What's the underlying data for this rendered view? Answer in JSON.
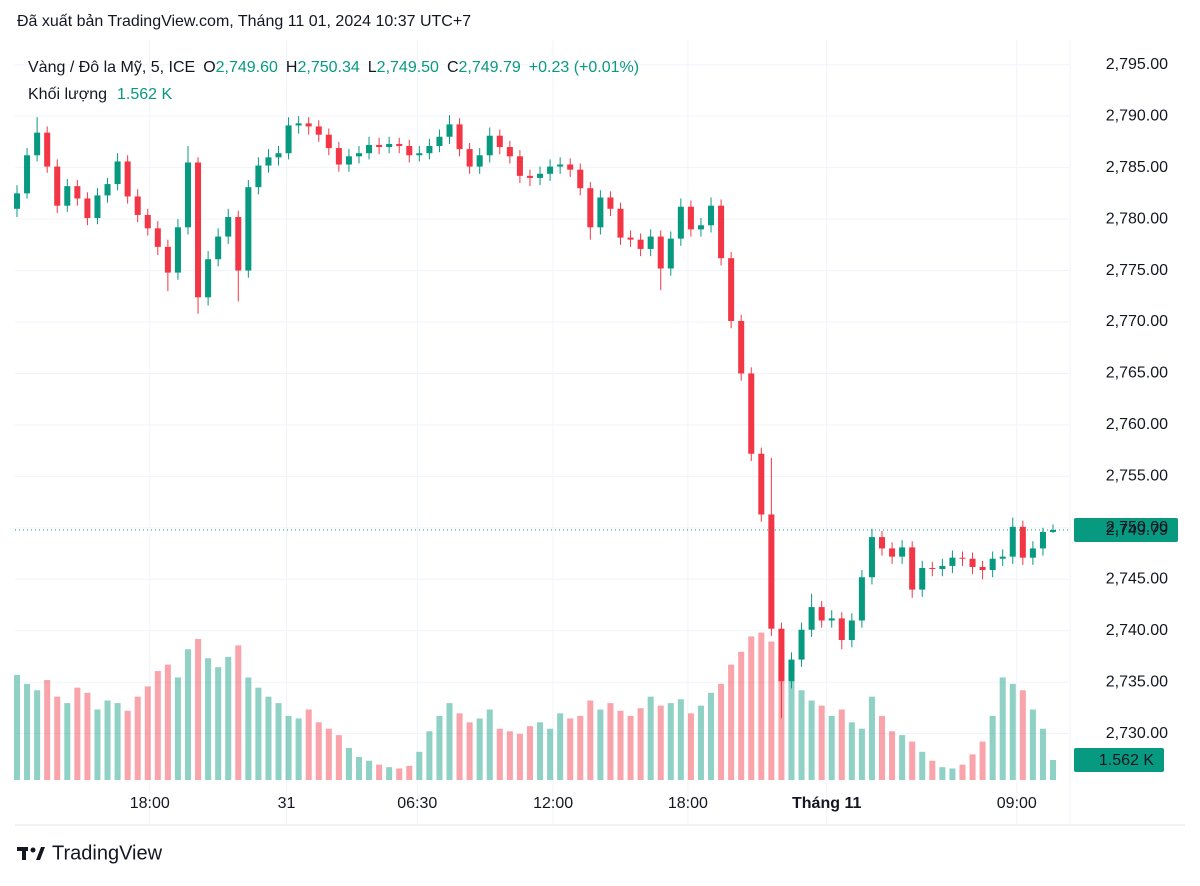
{
  "header": "Đã xuất bản TradingView.com, Tháng 11 01, 2024 10:37 UTC+7",
  "footer": "TradingView",
  "chart_data": {
    "type": "candlestick",
    "legend": {
      "symbol": "Vàng / Đô la Mỹ, 5, ICE",
      "o": "O",
      "open": {
        "value": 2749.6,
        "label": "2,749.60"
      },
      "h": "H",
      "high": {
        "value": 2750.34,
        "label": "2,750.34"
      },
      "l": "L",
      "low": {
        "value": 2749.5,
        "label": "2,749.50"
      },
      "c": "C",
      "close": {
        "value": 2749.79,
        "label": "2,749.79"
      },
      "change": "+0.23 (+0.01%)",
      "volume_name": "Khối lượng",
      "volume": {
        "value": 1.562,
        "label": "1.562 K"
      }
    },
    "up_color": "#089981",
    "down_color": "#f23645",
    "ylim": [
      2725.5,
      2797.4
    ],
    "yticks": [
      {
        "value": 2730,
        "label": "2,730.00"
      },
      {
        "value": 2735,
        "label": "2,735.00"
      },
      {
        "value": 2740,
        "label": "2,740.00"
      },
      {
        "value": 2745,
        "label": "2,745.00"
      },
      {
        "value": 2750,
        "label": "2,750.00"
      },
      {
        "value": 2755,
        "label": "2,755.00"
      },
      {
        "value": 2760,
        "label": "2,760.00"
      },
      {
        "value": 2765,
        "label": "2,765.00"
      },
      {
        "value": 2770,
        "label": "2,770.00"
      },
      {
        "value": 2775,
        "label": "2,775.00"
      },
      {
        "value": 2780,
        "label": "2,780.00"
      },
      {
        "value": 2785,
        "label": "2,785.00"
      },
      {
        "value": 2790,
        "label": "2,790.00"
      },
      {
        "value": 2795,
        "label": "2,795.00"
      }
    ],
    "xlim": [
      0,
      103
    ],
    "xticks": [
      {
        "value": 13.2,
        "label": "18:00"
      },
      {
        "value": 26.8,
        "label": "31"
      },
      {
        "value": 39.8,
        "label": "06:30"
      },
      {
        "value": 53.3,
        "label": "12:00"
      },
      {
        "value": 66.7,
        "label": "18:00"
      },
      {
        "value": 80.5,
        "label": "Tháng 11"
      },
      {
        "value": 99.4,
        "label": "09:00"
      }
    ],
    "y2lim": [
      0,
      11.7
    ],
    "last_price": {
      "value": 2749.79,
      "label": "2,749.79"
    },
    "last_volume": {
      "value": 1.562,
      "label": "1.562 K"
    },
    "ohlc": [
      [
        2781.0,
        2783.3,
        2780.2,
        2782.5
      ],
      [
        2782.5,
        2786.9,
        2782.0,
        2786.2
      ],
      [
        2786.2,
        2789.9,
        2785.6,
        2788.4
      ],
      [
        2788.4,
        2789.0,
        2784.5,
        2785.1
      ],
      [
        2785.1,
        2785.8,
        2780.6,
        2781.3
      ],
      [
        2781.3,
        2783.9,
        2780.7,
        2783.2
      ],
      [
        2783.2,
        2783.8,
        2781.3,
        2782.0
      ],
      [
        2782.0,
        2782.6,
        2779.4,
        2780.1
      ],
      [
        2780.1,
        2783.0,
        2779.5,
        2782.3
      ],
      [
        2782.3,
        2784.0,
        2781.6,
        2783.4
      ],
      [
        2783.4,
        2786.4,
        2782.8,
        2785.6
      ],
      [
        2785.6,
        2786.2,
        2781.5,
        2782.2
      ],
      [
        2782.2,
        2782.9,
        2779.7,
        2780.4
      ],
      [
        2780.4,
        2781.0,
        2778.4,
        2779.1
      ],
      [
        2779.1,
        2779.8,
        2776.5,
        2777.3
      ],
      [
        2777.3,
        2778.0,
        2773.0,
        2774.8
      ],
      [
        2774.8,
        2780.0,
        2774.1,
        2779.2
      ],
      [
        2779.2,
        2787.1,
        2778.5,
        2785.5
      ],
      [
        2785.5,
        2786.0,
        2770.8,
        2772.4
      ],
      [
        2772.4,
        2776.9,
        2771.6,
        2776.1
      ],
      [
        2776.1,
        2779.1,
        2775.4,
        2778.3
      ],
      [
        2778.3,
        2781.0,
        2777.6,
        2780.2
      ],
      [
        2780.2,
        2780.8,
        2772.0,
        2775.0
      ],
      [
        2775.0,
        2783.8,
        2774.3,
        2783.1
      ],
      [
        2783.1,
        2786.0,
        2782.4,
        2785.2
      ],
      [
        2785.2,
        2786.8,
        2784.5,
        2786.0
      ],
      [
        2786.0,
        2787.1,
        2785.2,
        2786.4
      ],
      [
        2786.4,
        2789.9,
        2785.8,
        2789.1
      ],
      [
        2789.1,
        2790.0,
        2788.3,
        2789.3
      ],
      [
        2789.3,
        2789.9,
        2788.2,
        2789.0
      ],
      [
        2789.0,
        2789.6,
        2787.5,
        2788.2
      ],
      [
        2788.2,
        2788.8,
        2786.2,
        2786.9
      ],
      [
        2786.9,
        2787.5,
        2784.6,
        2785.3
      ],
      [
        2785.3,
        2786.8,
        2784.6,
        2786.1
      ],
      [
        2786.1,
        2787.1,
        2785.4,
        2786.4
      ],
      [
        2786.4,
        2788.0,
        2785.8,
        2787.2
      ],
      [
        2787.2,
        2787.9,
        2786.3,
        2787.0
      ],
      [
        2787.0,
        2788.0,
        2786.4,
        2787.3
      ],
      [
        2787.3,
        2787.9,
        2786.4,
        2787.1
      ],
      [
        2787.1,
        2787.7,
        2785.5,
        2786.2
      ],
      [
        2786.2,
        2787.1,
        2785.6,
        2786.4
      ],
      [
        2786.4,
        2787.8,
        2785.8,
        2787.1
      ],
      [
        2787.1,
        2788.7,
        2786.5,
        2788.0
      ],
      [
        2788.0,
        2790.1,
        2787.3,
        2789.2
      ],
      [
        2789.2,
        2789.8,
        2786.1,
        2786.8
      ],
      [
        2786.8,
        2787.4,
        2784.4,
        2785.1
      ],
      [
        2785.1,
        2786.9,
        2784.4,
        2786.2
      ],
      [
        2786.2,
        2788.9,
        2785.5,
        2788.1
      ],
      [
        2788.1,
        2788.7,
        2786.3,
        2787.0
      ],
      [
        2787.0,
        2787.6,
        2785.4,
        2786.1
      ],
      [
        2786.1,
        2786.7,
        2783.5,
        2784.2
      ],
      [
        2784.2,
        2784.8,
        2783.2,
        2784.0
      ],
      [
        2784.0,
        2785.1,
        2783.3,
        2784.4
      ],
      [
        2784.4,
        2785.8,
        2783.7,
        2785.1
      ],
      [
        2785.1,
        2786.0,
        2784.4,
        2785.3
      ],
      [
        2785.3,
        2785.9,
        2784.1,
        2784.8
      ],
      [
        2784.8,
        2785.4,
        2782.3,
        2783.0
      ],
      [
        2783.0,
        2783.6,
        2778.0,
        2779.2
      ],
      [
        2779.2,
        2782.8,
        2778.5,
        2782.1
      ],
      [
        2782.1,
        2782.7,
        2780.3,
        2781.0
      ],
      [
        2781.0,
        2781.6,
        2777.5,
        2778.2
      ],
      [
        2778.2,
        2778.9,
        2777.3,
        2778.0
      ],
      [
        2778.0,
        2778.6,
        2776.4,
        2777.1
      ],
      [
        2777.1,
        2779.0,
        2776.4,
        2778.3
      ],
      [
        2778.3,
        2778.9,
        2773.1,
        2775.2
      ],
      [
        2775.2,
        2778.8,
        2774.5,
        2778.1
      ],
      [
        2778.1,
        2782.0,
        2777.4,
        2781.2
      ],
      [
        2781.2,
        2781.8,
        2778.3,
        2779.0
      ],
      [
        2779.0,
        2780.1,
        2778.3,
        2779.4
      ],
      [
        2779.4,
        2782.1,
        2778.7,
        2781.3
      ],
      [
        2781.3,
        2781.9,
        2775.5,
        2776.2
      ],
      [
        2776.2,
        2776.8,
        2769.4,
        2770.1
      ],
      [
        2770.1,
        2770.7,
        2764.3,
        2765.0
      ],
      [
        2765.0,
        2765.6,
        2756.5,
        2757.2
      ],
      [
        2757.2,
        2757.8,
        2750.6,
        2751.3
      ],
      [
        2751.3,
        2756.8,
        2739.5,
        2740.2
      ],
      [
        2740.2,
        2740.8,
        2731.5,
        2735.1
      ],
      [
        2735.1,
        2737.9,
        2734.4,
        2737.2
      ],
      [
        2737.2,
        2740.8,
        2736.5,
        2740.1
      ],
      [
        2740.1,
        2743.6,
        2739.4,
        2742.3
      ],
      [
        2742.3,
        2742.9,
        2740.3,
        2741.0
      ],
      [
        2741.0,
        2742.0,
        2740.3,
        2741.2
      ],
      [
        2741.2,
        2741.8,
        2738.2,
        2739.1
      ],
      [
        2739.1,
        2741.7,
        2738.4,
        2741.0
      ],
      [
        2741.0,
        2745.9,
        2740.3,
        2745.2
      ],
      [
        2745.2,
        2749.9,
        2744.5,
        2749.1
      ],
      [
        2749.1,
        2749.7,
        2747.3,
        2748.0
      ],
      [
        2748.0,
        2748.6,
        2746.5,
        2747.2
      ],
      [
        2747.2,
        2748.8,
        2746.5,
        2748.1
      ],
      [
        2748.1,
        2748.7,
        2743.2,
        2744.0
      ],
      [
        2744.0,
        2746.8,
        2743.3,
        2746.1
      ],
      [
        2746.1,
        2746.7,
        2745.3,
        2746.0
      ],
      [
        2746.0,
        2747.0,
        2745.3,
        2746.3
      ],
      [
        2746.3,
        2747.8,
        2745.6,
        2747.1
      ],
      [
        2747.1,
        2747.7,
        2746.3,
        2747.0
      ],
      [
        2747.0,
        2747.6,
        2745.5,
        2746.2
      ],
      [
        2746.2,
        2746.8,
        2745.0,
        2745.9
      ],
      [
        2745.9,
        2747.7,
        2745.2,
        2747.0
      ],
      [
        2747.0,
        2747.9,
        2746.3,
        2747.2
      ],
      [
        2747.2,
        2751.0,
        2746.5,
        2750.1
      ],
      [
        2750.1,
        2750.7,
        2746.4,
        2747.1
      ],
      [
        2747.1,
        2748.7,
        2746.4,
        2748.0
      ],
      [
        2748.0,
        2750.0,
        2747.3,
        2749.6
      ],
      [
        2749.6,
        2750.34,
        2749.5,
        2749.79
      ]
    ],
    "volume": [
      8.2,
      7.5,
      7.0,
      7.8,
      6.5,
      6.0,
      7.2,
      6.8,
      5.5,
      6.2,
      6.0,
      5.4,
      6.5,
      7.3,
      8.5,
      9.0,
      8.0,
      10.2,
      11.0,
      9.5,
      8.8,
      9.6,
      10.5,
      8.0,
      7.2,
      6.5,
      6.0,
      5.0,
      4.8,
      5.5,
      4.5,
      4.0,
      3.5,
      2.5,
      1.8,
      1.5,
      1.2,
      1.0,
      0.9,
      1.1,
      2.2,
      3.8,
      5.0,
      6.0,
      5.2,
      4.5,
      4.8,
      5.5,
      4.0,
      3.8,
      3.6,
      4.2,
      4.5,
      4.0,
      5.2,
      4.8,
      5.0,
      6.2,
      5.5,
      6.0,
      5.4,
      5.0,
      5.6,
      6.5,
      5.8,
      6.0,
      6.3,
      5.2,
      5.8,
      6.8,
      7.5,
      9.0,
      10.0,
      11.2,
      11.5,
      10.8,
      9.5,
      8.0,
      7.0,
      6.2,
      5.8,
      5.0,
      5.5,
      4.5,
      4.0,
      6.5,
      5.0,
      3.8,
      3.5,
      3.0,
      2.2,
      1.5,
      1.0,
      0.9,
      1.2,
      2.0,
      3.0,
      5.0,
      8.0,
      7.5,
      7.0,
      5.5,
      4.0,
      1.562
    ]
  }
}
